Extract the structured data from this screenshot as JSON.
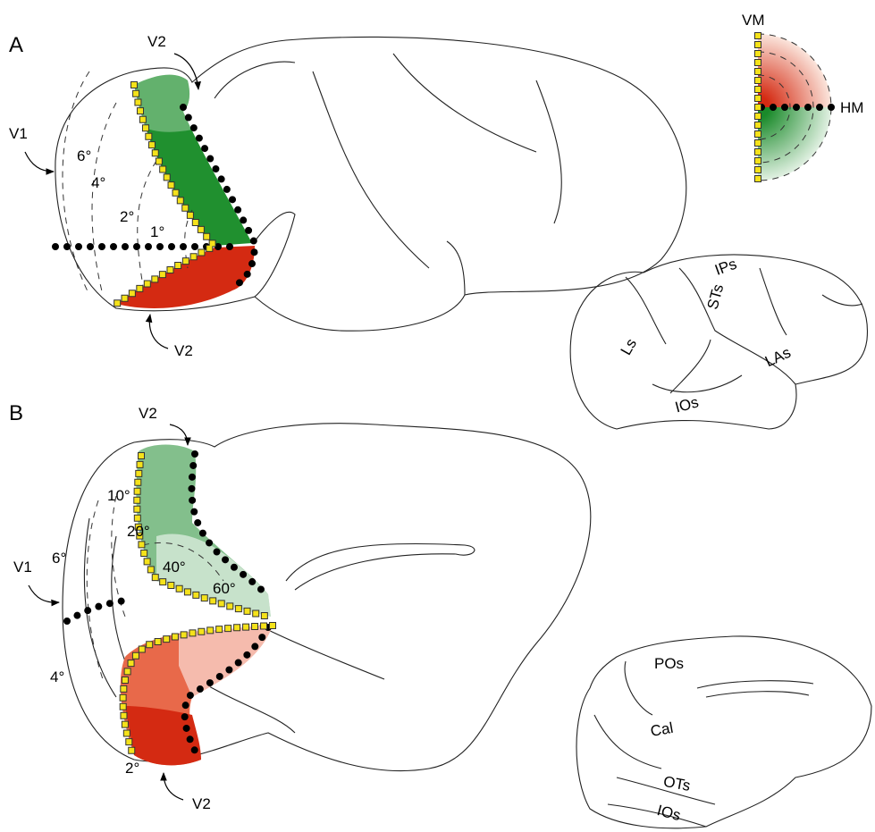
{
  "panel_a": {
    "label": "A",
    "v2_top": "V2",
    "v2_bottom": "V2",
    "v1": "V1",
    "eccentricities": [
      "6°",
      "4°",
      "2°",
      "1°"
    ]
  },
  "legend": {
    "vm": "VM",
    "hm": "HM"
  },
  "inset_lateral": {
    "sulci": [
      "IPs",
      "STs",
      "Ls",
      "LAs",
      "IOs"
    ]
  },
  "panel_b": {
    "label": "B",
    "v2_top": "V2",
    "v2_bottom": "V2",
    "v1": "V1",
    "eccentricities": [
      "10°",
      "20°",
      "40°",
      "60°",
      "6°",
      "4°",
      "2°"
    ]
  },
  "inset_medial": {
    "sulci": [
      "POs",
      "Cal",
      "OTs",
      "IOs"
    ]
  }
}
